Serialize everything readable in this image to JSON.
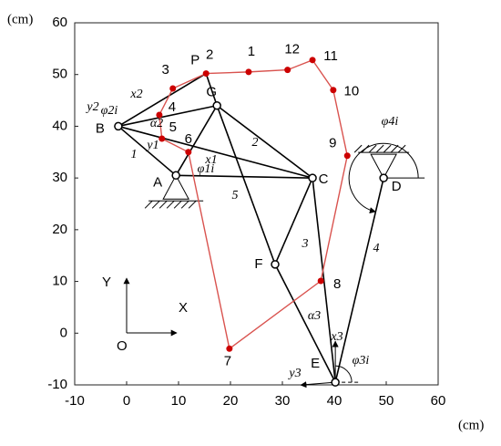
{
  "axes": {
    "xlim": [
      -10,
      60
    ],
    "ylim": [
      -10,
      60
    ],
    "xticks": [
      -10,
      0,
      10,
      20,
      30,
      40,
      50,
      60
    ],
    "yticks": [
      -10,
      0,
      10,
      20,
      30,
      40,
      50,
      60
    ],
    "x_unit": "(cm)",
    "y_unit": "(cm)"
  },
  "frame": {
    "x_label": "X",
    "y_label": "Y",
    "origin_label": "O"
  },
  "joints": [
    {
      "label": "B",
      "x": -1.6,
      "y": 40
    },
    {
      "label": "A",
      "x": 9.5,
      "y": 30.5
    },
    {
      "label": "G",
      "x": 17.4,
      "y": 44
    },
    {
      "label": "C",
      "x": 35.8,
      "y": 30
    },
    {
      "label": "D",
      "x": 49.5,
      "y": 30
    },
    {
      "label": "F",
      "x": 28.6,
      "y": 13.3
    },
    {
      "label": "E",
      "x": 40.2,
      "y": -9.5
    },
    {
      "label": "P",
      "x": 15.3,
      "y": 50.2
    }
  ],
  "path_points": [
    {
      "label": "7",
      "x": 19.8,
      "y": -3
    },
    {
      "label": "6",
      "x": 11.9,
      "y": 35
    },
    {
      "label": "5",
      "x": 6.8,
      "y": 37.6
    },
    {
      "label": "4",
      "x": 6.3,
      "y": 42.2
    },
    {
      "label": "3",
      "x": 8.9,
      "y": 47.3
    },
    {
      "label": "2",
      "x": 15.3,
      "y": 50.2
    },
    {
      "label": "1",
      "x": 23.5,
      "y": 50.5
    },
    {
      "label": "12",
      "x": 31,
      "y": 50.9
    },
    {
      "label": "11",
      "x": 35.8,
      "y": 52.8
    },
    {
      "label": "10",
      "x": 39.8,
      "y": 47
    },
    {
      "label": "9",
      "x": 42.5,
      "y": 34.3
    },
    {
      "label": "8",
      "x": 37.4,
      "y": 10.1
    }
  ],
  "annotations": [
    "1",
    "2",
    "3",
    "4",
    "5",
    "φ2i",
    "x2",
    "y2",
    "α2",
    "y1",
    "x1",
    "φ1i",
    "φ4i",
    "α3",
    "x3",
    "y3",
    "φ3i"
  ]
}
